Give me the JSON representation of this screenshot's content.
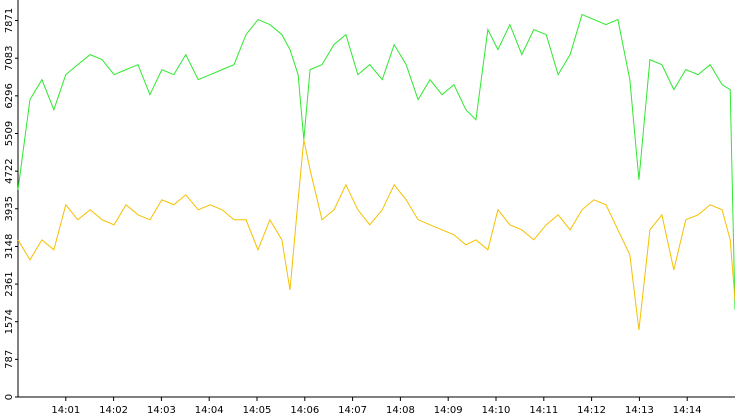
{
  "chart_data": {
    "type": "line",
    "x": [
      840,
      840.25,
      840.5,
      840.75,
      841,
      841.25,
      841.51,
      841.76,
      842.01,
      842.26,
      842.51,
      842.76,
      843.01,
      843.26,
      843.51,
      843.77,
      844.02,
      844.27,
      844.52,
      844.77,
      845.02,
      845.27,
      845.52,
      845.69,
      845.86,
      845.98,
      846.11,
      846.36,
      846.61,
      846.86,
      847.11,
      847.36,
      847.62,
      847.87,
      848.12,
      848.37,
      848.62,
      848.87,
      849.12,
      849.37,
      849.58,
      849.83,
      850.04,
      850.29,
      850.54,
      850.79,
      851.05,
      851.3,
      851.55,
      851.8,
      852.05,
      852.3,
      852.55,
      852.8,
      852.99,
      853.22,
      853.47,
      853.72,
      853.97,
      854.23,
      854.48,
      854.73,
      854.9,
      855
    ],
    "series": [
      {
        "color": "#2ee82e",
        "values": [
          4333,
          6216,
          6635,
          6007,
          6739,
          6949,
          7158,
          7053,
          6739,
          6844,
          6949,
          6321,
          6844,
          6739,
          7158,
          6635,
          6739,
          6844,
          6949,
          7577,
          7891,
          7786,
          7577,
          7263,
          6739,
          5379,
          6844,
          6949,
          7367,
          7577,
          6739,
          6949,
          6635,
          7367,
          6949,
          6216,
          6635,
          6321,
          6530,
          6007,
          5798,
          7681,
          7263,
          7786,
          7158,
          7681,
          7577,
          6739,
          7158,
          7995,
          7891,
          7786,
          7891,
          6635,
          4542,
          7053,
          6949,
          6426,
          6844,
          6739,
          6949,
          6530,
          6426,
          1821
        ]
      },
      {
        "color": "#f5c000",
        "values": [
          3286,
          2867,
          3286,
          3077,
          4019,
          3705,
          3914,
          3705,
          3600,
          4019,
          3809,
          3705,
          4123,
          4019,
          4228,
          3914,
          4019,
          3914,
          3705,
          3705,
          3077,
          3705,
          3286,
          2239,
          4123,
          5379,
          4751,
          3705,
          3914,
          4437,
          3914,
          3600,
          3914,
          4437,
          4123,
          3705,
          3600,
          3495,
          3391,
          3181,
          3286,
          3077,
          3914,
          3600,
          3495,
          3286,
          3600,
          3809,
          3495,
          3914,
          4123,
          4019,
          3495,
          2972,
          1402,
          3495,
          3809,
          2658,
          3705,
          3809,
          4019,
          3914,
          3286,
          2030
        ]
      }
    ],
    "xlim": [
      840,
      855
    ],
    "xticks": [
      {
        "value": 841,
        "label": "14:01"
      },
      {
        "value": 842,
        "label": "14:02"
      },
      {
        "value": 843,
        "label": "14:03"
      },
      {
        "value": 844,
        "label": "14:04"
      },
      {
        "value": 845,
        "label": "14:05"
      },
      {
        "value": 846,
        "label": "14:06"
      },
      {
        "value": 847,
        "label": "14:07"
      },
      {
        "value": 848,
        "label": "14:08"
      },
      {
        "value": 849,
        "label": "14:09"
      },
      {
        "value": 850,
        "label": "14:10"
      },
      {
        "value": 851,
        "label": "14:11"
      },
      {
        "value": 852,
        "label": "14:12"
      },
      {
        "value": 853,
        "label": "14:13"
      },
      {
        "value": 854,
        "label": "14:14"
      }
    ],
    "ylim": [
      0,
      8300
    ],
    "yticks": [
      0,
      787,
      1574,
      2361,
      3148,
      3935,
      4722,
      5509,
      6296,
      7083,
      7871
    ]
  }
}
